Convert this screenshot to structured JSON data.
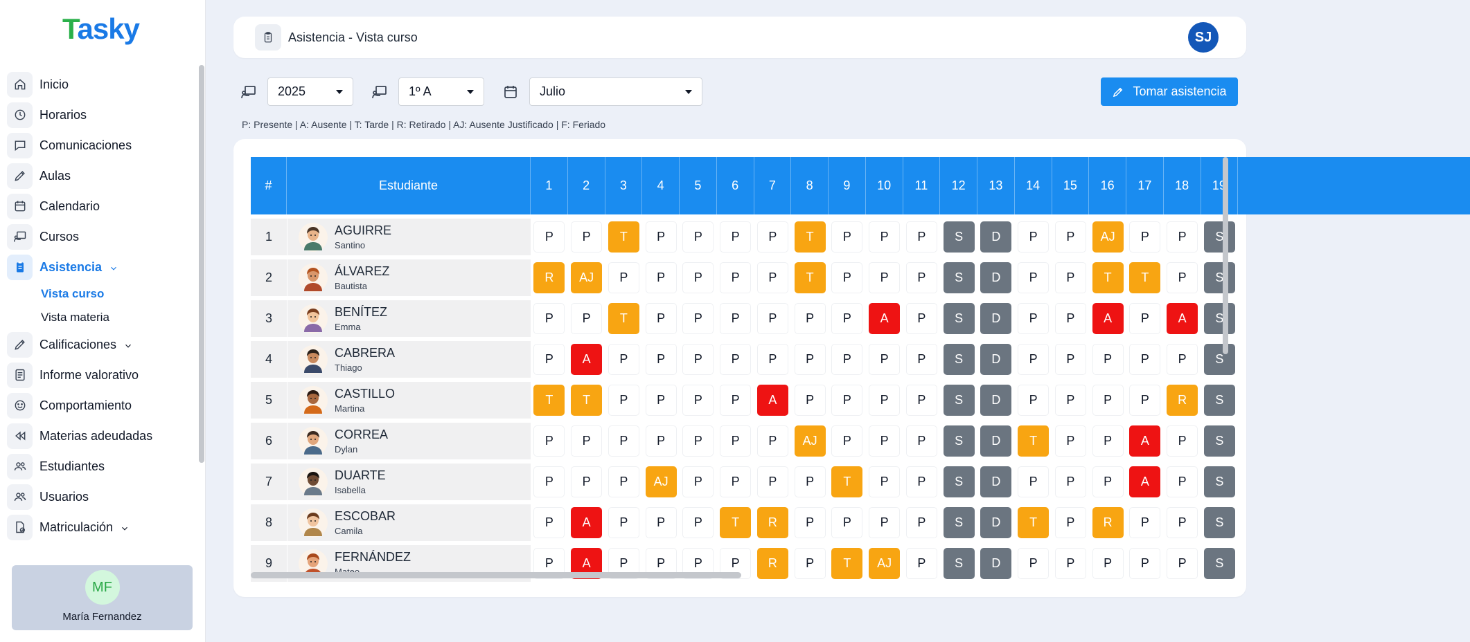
{
  "app": {
    "logo_text_first": "T",
    "logo_text_rest": "asky"
  },
  "sidebar": {
    "items": [
      {
        "label": "Inicio",
        "icon": "home-icon"
      },
      {
        "label": "Horarios",
        "icon": "clock-icon"
      },
      {
        "label": "Comunicaciones",
        "icon": "chat-icon"
      },
      {
        "label": "Aulas",
        "icon": "pencil-icon"
      },
      {
        "label": "Calendario",
        "icon": "calendar-icon"
      },
      {
        "label": "Cursos",
        "icon": "presentation-icon"
      },
      {
        "label": "Asistencia",
        "icon": "clipboard-icon",
        "active": true,
        "expandable": true,
        "children": [
          {
            "label": "Vista curso",
            "active": true
          },
          {
            "label": "Vista materia"
          }
        ]
      },
      {
        "label": "Calificaciones",
        "icon": "pencil-icon",
        "expandable": true
      },
      {
        "label": "Informe valorativo",
        "icon": "document-icon"
      },
      {
        "label": "Comportamiento",
        "icon": "smile-icon"
      },
      {
        "label": "Materias adeudadas",
        "icon": "rewind-icon"
      },
      {
        "label": "Estudiantes",
        "icon": "users-icon"
      },
      {
        "label": "Usuarios",
        "icon": "users-icon"
      },
      {
        "label": "Matriculación",
        "icon": "file-check-icon",
        "expandable": true
      }
    ],
    "user": {
      "initials": "MF",
      "name": "María Fernandez"
    }
  },
  "header": {
    "title": "Asistencia - Vista curso",
    "avatar_initials": "SJ"
  },
  "filters": {
    "year": "2025",
    "course": "1º A",
    "month": "Julio",
    "take_attendance_label": "Tomar asistencia"
  },
  "legend": "P: Presente | A: Ausente | T: Tarde | R: Retirado | AJ: Ausente Justificado | F: Feriado",
  "table": {
    "col_num": "#",
    "col_student": "Estudiante",
    "days": [
      "1",
      "2",
      "3",
      "4",
      "5",
      "6",
      "7",
      "8",
      "9",
      "10",
      "11",
      "12",
      "13",
      "14",
      "15",
      "16",
      "17",
      "18",
      "19"
    ],
    "rows": [
      {
        "num": "1",
        "last": "AGUIRRE",
        "first": "Santino",
        "marks": [
          "P",
          "P",
          "T",
          "P",
          "P",
          "P",
          "P",
          "T",
          "P",
          "P",
          "P",
          "S",
          "D",
          "P",
          "P",
          "AJ",
          "P",
          "P",
          "S"
        ]
      },
      {
        "num": "2",
        "last": "ÁLVAREZ",
        "first": "Bautista",
        "marks": [
          "R",
          "AJ",
          "P",
          "P",
          "P",
          "P",
          "P",
          "T",
          "P",
          "P",
          "P",
          "S",
          "D",
          "P",
          "P",
          "T",
          "T",
          "P",
          "S"
        ]
      },
      {
        "num": "3",
        "last": "BENÍTEZ",
        "first": "Emma",
        "marks": [
          "P",
          "P",
          "T",
          "P",
          "P",
          "P",
          "P",
          "P",
          "P",
          "A",
          "P",
          "S",
          "D",
          "P",
          "P",
          "A",
          "P",
          "A",
          "S"
        ]
      },
      {
        "num": "4",
        "last": "CABRERA",
        "first": "Thiago",
        "marks": [
          "P",
          "A",
          "P",
          "P",
          "P",
          "P",
          "P",
          "P",
          "P",
          "P",
          "P",
          "S",
          "D",
          "P",
          "P",
          "P",
          "P",
          "P",
          "S"
        ]
      },
      {
        "num": "5",
        "last": "CASTILLO",
        "first": "Martina",
        "marks": [
          "T",
          "T",
          "P",
          "P",
          "P",
          "P",
          "A",
          "P",
          "P",
          "P",
          "P",
          "S",
          "D",
          "P",
          "P",
          "P",
          "P",
          "R",
          "S"
        ]
      },
      {
        "num": "6",
        "last": "CORREA",
        "first": "Dylan",
        "marks": [
          "P",
          "P",
          "P",
          "P",
          "P",
          "P",
          "P",
          "AJ",
          "P",
          "P",
          "P",
          "S",
          "D",
          "T",
          "P",
          "P",
          "A",
          "P",
          "S"
        ]
      },
      {
        "num": "7",
        "last": "DUARTE",
        "first": "Isabella",
        "marks": [
          "P",
          "P",
          "P",
          "AJ",
          "P",
          "P",
          "P",
          "P",
          "T",
          "P",
          "P",
          "S",
          "D",
          "P",
          "P",
          "P",
          "A",
          "P",
          "S"
        ]
      },
      {
        "num": "8",
        "last": "ESCOBAR",
        "first": "Camila",
        "marks": [
          "P",
          "A",
          "P",
          "P",
          "P",
          "T",
          "R",
          "P",
          "P",
          "P",
          "P",
          "S",
          "D",
          "T",
          "P",
          "R",
          "P",
          "P",
          "S"
        ]
      },
      {
        "num": "9",
        "last": "FERNÁNDEZ",
        "first": "Mateo",
        "marks": [
          "P",
          "A",
          "P",
          "P",
          "P",
          "P",
          "R",
          "P",
          "T",
          "AJ",
          "P",
          "S",
          "D",
          "P",
          "P",
          "P",
          "P",
          "P",
          "S"
        ]
      }
    ]
  },
  "colors": {
    "primary": "#1a8cf0",
    "late": "#f8a512",
    "absent": "#ee1313",
    "weekend": "#6b7580"
  }
}
